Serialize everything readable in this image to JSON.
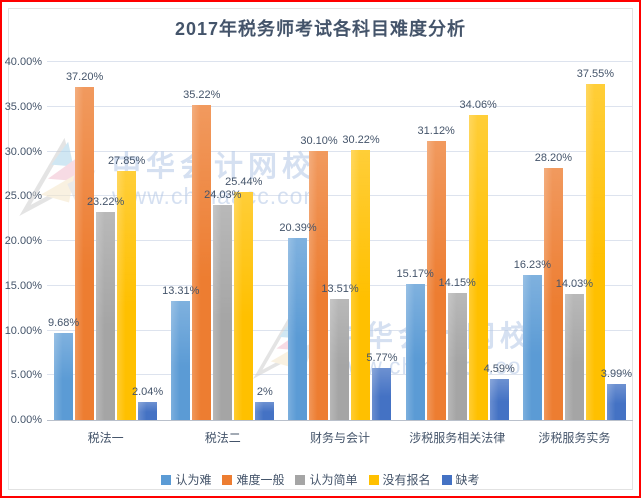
{
  "title": "2017年税务师考试各科目难度分析",
  "watermark": {
    "name": "中华会计网校",
    "url": "www.chinaacc.com"
  },
  "chart_data": {
    "type": "bar",
    "title": "2017年税务师考试各科目难度分析",
    "categories": [
      "税法一",
      "税法二",
      "财务与会计",
      "涉税服务相关法律",
      "涉税服务实务"
    ],
    "series": [
      {
        "name": "认为难",
        "color": "#5B9BD5",
        "values": [
          9.68,
          13.31,
          20.39,
          15.17,
          16.23
        ],
        "labels": [
          "9.68%",
          "13.31%",
          "20.39%",
          "15.17%",
          "16.23%"
        ]
      },
      {
        "name": "难度一般",
        "color": "#ED7D31",
        "values": [
          37.2,
          35.22,
          30.1,
          31.12,
          28.2
        ],
        "labels": [
          "37.20%",
          "35.22%",
          "30.10%",
          "31.12%",
          "28.20%"
        ]
      },
      {
        "name": "认为简单",
        "color": "#A5A5A5",
        "values": [
          23.22,
          24.03,
          13.51,
          14.15,
          14.03
        ],
        "labels": [
          "23.22%",
          "24.03%",
          "13.51%",
          "14.15%",
          "14.03%"
        ]
      },
      {
        "name": "没有报名",
        "color": "#FFC000",
        "values": [
          27.85,
          25.44,
          30.22,
          34.06,
          37.55
        ],
        "labels": [
          "27.85%",
          "25.44%",
          "30.22%",
          "34.06%",
          "37.55%"
        ]
      },
      {
        "name": "缺考",
        "color": "#4472C4",
        "values": [
          2.04,
          2,
          5.77,
          4.59,
          3.99
        ],
        "labels": [
          "2.04%",
          "2%",
          "5.77%",
          "4.59%",
          "3.99%"
        ]
      }
    ],
    "xlabel": "",
    "ylabel": "",
    "y_axis": {
      "min": 0,
      "max": 40,
      "step": 5,
      "tick_labels": [
        "0.00%",
        "5.00%",
        "10.00%",
        "15.00%",
        "20.00%",
        "25.00%",
        "30.00%",
        "35.00%",
        "40.00%"
      ]
    },
    "grid": true,
    "legend_position": "bottom",
    "frame_border_color": "#ff0000",
    "title_color": "#44546A",
    "gridline_color": "#dde3ee",
    "watermark_color": "#b4c8e6"
  }
}
